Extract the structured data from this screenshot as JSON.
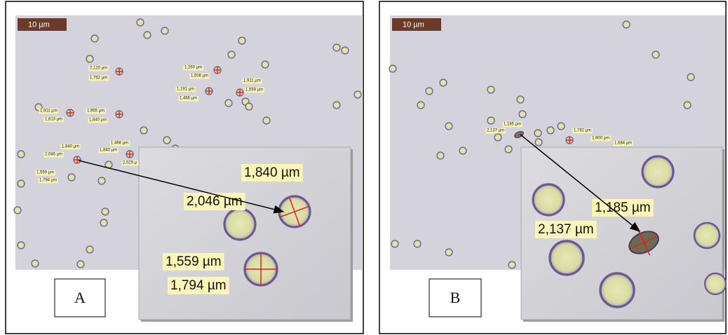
{
  "panels": [
    {
      "label": "A",
      "scale_bar": "10 µm",
      "labels": [
        "2,120 µm",
        "1,762 µm",
        "1,260 µm",
        "1,508 µm",
        "1,911 µm",
        "1,559 µm",
        "1,191 µm",
        "1,466 µm",
        "1,911 µm",
        "1,813 µm",
        "1,955 µm",
        "1,840 µm",
        "1,840 µm",
        "2,046 µm",
        "1,466 µm",
        "1,840 µm",
        "2,029 µ",
        "1,559 µm",
        "1,794 µm"
      ],
      "inset_labels": [
        "1,840 µm",
        "2,046 µm",
        "1,559 µm",
        "1,794 µm"
      ]
    },
    {
      "label": "B",
      "scale_bar": "10 µm",
      "labels": [
        "1,185 µm",
        "2,137 µm",
        "1,782 µm",
        "1,900 µm",
        "1,684 µm"
      ],
      "inset_labels": [
        "1,185 µm",
        "2,137 µm"
      ]
    }
  ]
}
